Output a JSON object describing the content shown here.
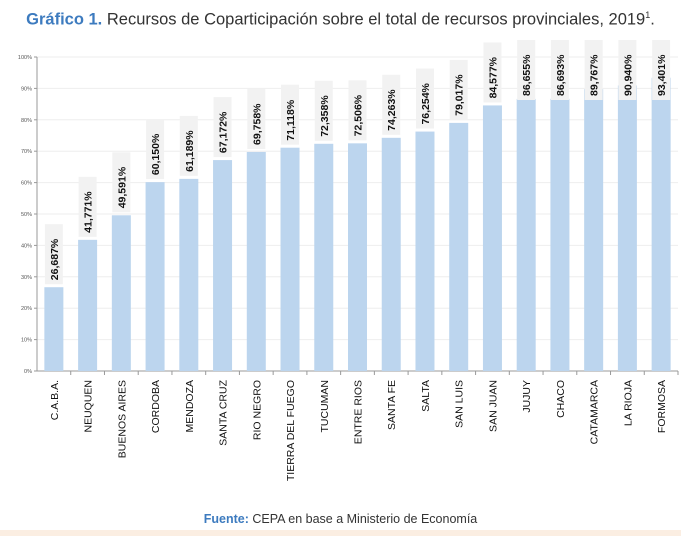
{
  "title": {
    "lead": "Gráfico 1.",
    "text": "Recursos de Coparticipación sobre el total de recursos provinciales, 2019",
    "footnote": "1",
    "end": "."
  },
  "source": {
    "lead": "Fuente:",
    "text": "CEPA en base a Ministerio de Economía"
  },
  "chart_data": {
    "type": "bar",
    "title": "",
    "xlabel": "",
    "ylabel": "",
    "ylim": [
      0,
      100
    ],
    "yticks": [
      "0%",
      "10%",
      "20%",
      "30%",
      "40%",
      "50%",
      "60%",
      "70%",
      "80%",
      "90%",
      "100%"
    ],
    "grid": true,
    "bar_color": "#bcd5ee",
    "categories": [
      "C.A.B.A.",
      "NEUQUEN",
      "BUENOS AIRES",
      "CORDOBA",
      "MENDOZA",
      "SANTA CRUZ",
      "RIO NEGRO",
      "TIERRA DEL FUEGO",
      "TUCUMAN",
      "ENTRE RIOS",
      "SANTA FE",
      "SALTA",
      "SAN LUIS",
      "SAN JUAN",
      "JUJUY",
      "CHACO",
      "CATAMARCA",
      "LA RIOJA",
      "FORMOSA"
    ],
    "values": [
      26.687,
      41.771,
      49.591,
      60.15,
      61.189,
      67.172,
      69.758,
      71.118,
      72.358,
      72.506,
      74.263,
      76.254,
      79.017,
      84.577,
      86.655,
      86.693,
      89.767,
      90.94,
      93.401
    ],
    "labels": [
      "26,687%",
      "41,771%",
      "49,591%",
      "60,150%",
      "61,189%",
      "67,172%",
      "69,758%",
      "71,118%",
      "72,358%",
      "72,506%",
      "74,263%",
      "76,254%",
      "79,017%",
      "84,577%",
      "86,655%",
      "86,693%",
      "89,767%",
      "90,940%",
      "93,401%"
    ]
  }
}
